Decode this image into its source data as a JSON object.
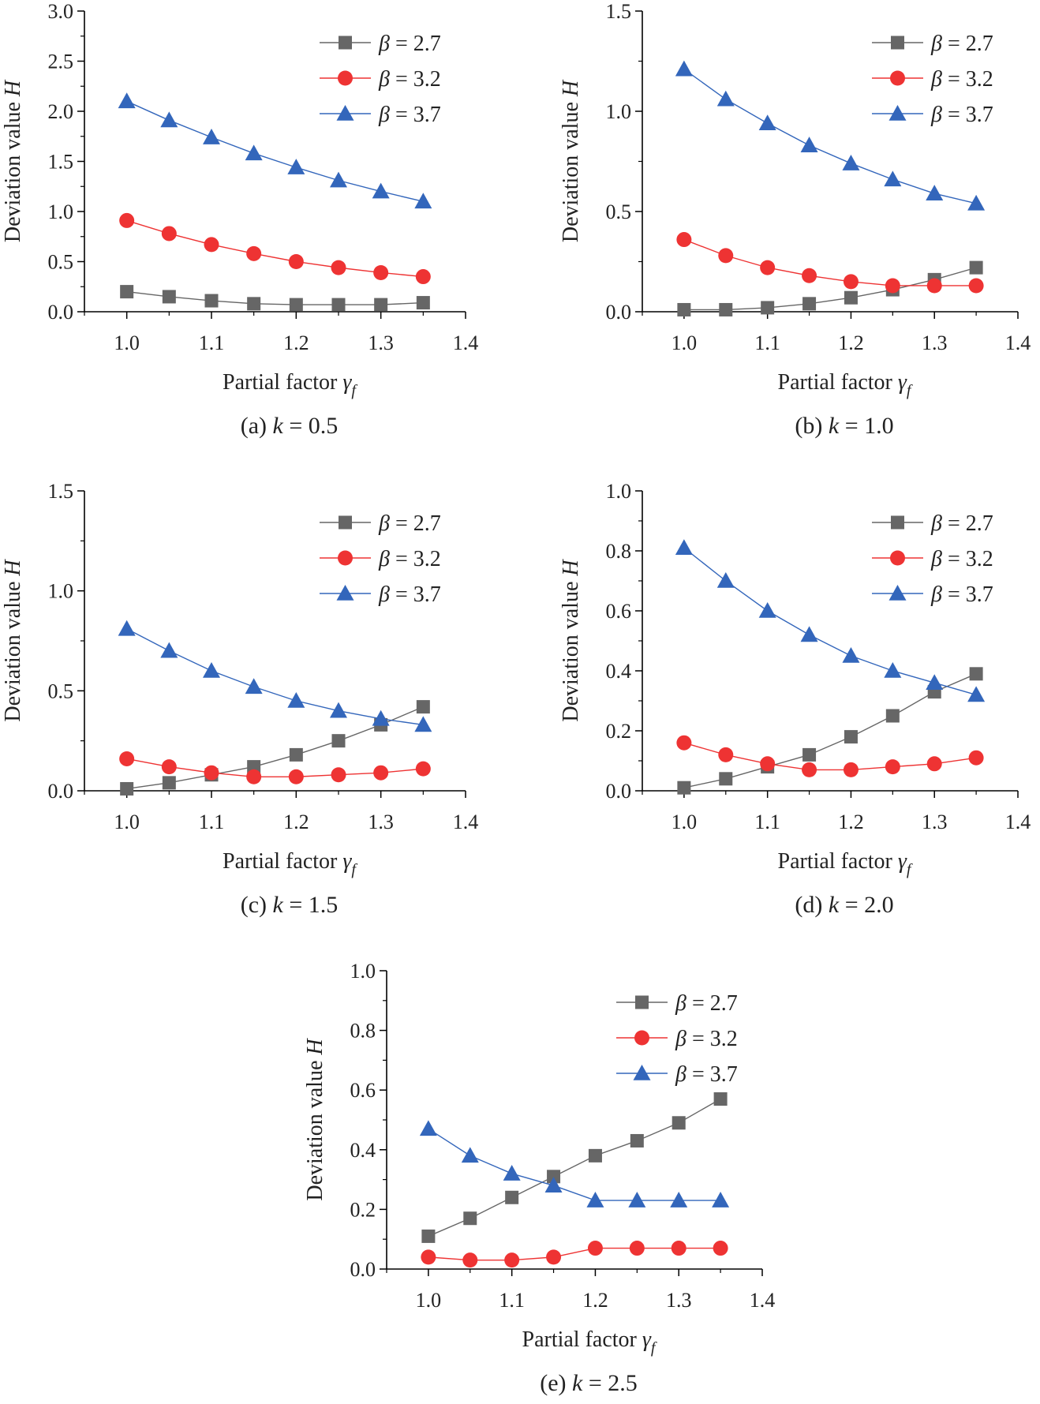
{
  "figure": {
    "series_styles": [
      {
        "name": "β = 2.7",
        "color": "#666666",
        "marker": "square"
      },
      {
        "name": "β = 3.2",
        "color": "#ee3333",
        "marker": "circle"
      },
      {
        "name": "β = 3.7",
        "color": "#3366bb",
        "marker": "triangle"
      }
    ],
    "legend_symbol": "β",
    "legend_values": [
      "2.7",
      "3.2",
      "3.7"
    ],
    "ylabel": "Deviation value H",
    "xlabel": "Partial factor γf"
  },
  "chart_data": [
    {
      "type": "line",
      "caption_prefix": "(a) ",
      "caption_var": "k",
      "caption_value": " = 0.5",
      "xlabel": "Partial factor γf",
      "ylabel": "Deviation value H",
      "xlim": [
        0.95,
        1.4
      ],
      "ylim": [
        0,
        3.0
      ],
      "xticks": [
        "1.0",
        "1.1",
        "1.2",
        "1.3",
        "1.4"
      ],
      "yticks": [
        "0.0",
        "0.5",
        "1.0",
        "1.5",
        "2.0",
        "2.5",
        "3.0"
      ],
      "x": [
        1.0,
        1.05,
        1.1,
        1.15,
        1.2,
        1.25,
        1.3,
        1.35
      ],
      "legend": "top-right",
      "series": [
        {
          "name": "β = 2.7",
          "values": [
            0.2,
            0.15,
            0.11,
            0.08,
            0.07,
            0.07,
            0.07,
            0.09
          ]
        },
        {
          "name": "β = 3.2",
          "values": [
            0.91,
            0.78,
            0.67,
            0.58,
            0.5,
            0.44,
            0.39,
            0.35
          ]
        },
        {
          "name": "β = 3.7",
          "values": [
            2.1,
            1.91,
            1.74,
            1.58,
            1.44,
            1.31,
            1.2,
            1.1
          ]
        }
      ]
    },
    {
      "type": "line",
      "caption_prefix": "(b) ",
      "caption_var": "k",
      "caption_value": " = 1.0",
      "xlabel": "Partial factor γf",
      "ylabel": "Deviation value H",
      "xlim": [
        0.95,
        1.4
      ],
      "ylim": [
        0,
        1.5
      ],
      "xticks": [
        "1.0",
        "1.1",
        "1.2",
        "1.3",
        "1.4"
      ],
      "yticks": [
        "0.0",
        "0.5",
        "1.0",
        "1.5"
      ],
      "x": [
        1.0,
        1.05,
        1.1,
        1.15,
        1.2,
        1.25,
        1.3,
        1.35
      ],
      "legend": "top-right",
      "series": [
        {
          "name": "β = 2.7",
          "values": [
            0.01,
            0.01,
            0.02,
            0.04,
            0.07,
            0.11,
            0.16,
            0.22
          ]
        },
        {
          "name": "β = 3.2",
          "values": [
            0.36,
            0.28,
            0.22,
            0.18,
            0.15,
            0.13,
            0.13,
            0.13
          ]
        },
        {
          "name": "β = 3.7",
          "values": [
            1.21,
            1.06,
            0.94,
            0.83,
            0.74,
            0.66,
            0.59,
            0.54
          ]
        }
      ]
    },
    {
      "type": "line",
      "caption_prefix": "(c) ",
      "caption_var": "k",
      "caption_value": " = 1.5",
      "xlabel": "Partial factor γf",
      "ylabel": "Deviation value H",
      "xlim": [
        0.95,
        1.4
      ],
      "ylim": [
        0,
        1.5
      ],
      "xticks": [
        "1.0",
        "1.1",
        "1.2",
        "1.3",
        "1.4"
      ],
      "yticks": [
        "0.0",
        "0.5",
        "1.0",
        "1.5"
      ],
      "x": [
        1.0,
        1.05,
        1.1,
        1.15,
        1.2,
        1.25,
        1.3,
        1.35
      ],
      "legend": "top-right",
      "series": [
        {
          "name": "β = 2.7",
          "values": [
            0.01,
            0.04,
            0.08,
            0.12,
            0.18,
            0.25,
            0.33,
            0.42
          ]
        },
        {
          "name": "β = 3.2",
          "values": [
            0.16,
            0.12,
            0.09,
            0.07,
            0.07,
            0.08,
            0.09,
            0.11
          ]
        },
        {
          "name": "β = 3.7",
          "values": [
            0.81,
            0.7,
            0.6,
            0.52,
            0.45,
            0.4,
            0.36,
            0.33
          ]
        }
      ]
    },
    {
      "type": "line",
      "caption_prefix": "(d) ",
      "caption_var": "k",
      "caption_value": " = 2.0",
      "xlabel": "Partial factor γf",
      "ylabel": "Deviation value H",
      "xlim": [
        0.95,
        1.4
      ],
      "ylim": [
        0,
        1.0
      ],
      "xticks": [
        "1.0",
        "1.1",
        "1.2",
        "1.3",
        "1.4"
      ],
      "yticks": [
        "0.0",
        "0.2",
        "0.4",
        "0.6",
        "0.8",
        "1.0"
      ],
      "x": [
        1.0,
        1.05,
        1.1,
        1.15,
        1.2,
        1.25,
        1.3,
        1.35
      ],
      "legend": "top-right",
      "series": [
        {
          "name": "β = 2.7",
          "values": [
            0.01,
            0.04,
            0.08,
            0.12,
            0.18,
            0.25,
            0.33,
            0.39
          ]
        },
        {
          "name": "β = 3.2",
          "values": [
            0.16,
            0.12,
            0.09,
            0.07,
            0.07,
            0.08,
            0.09,
            0.11
          ]
        },
        {
          "name": "β = 3.7",
          "values": [
            0.81,
            0.7,
            0.6,
            0.52,
            0.45,
            0.4,
            0.36,
            0.32
          ]
        }
      ]
    },
    {
      "type": "line",
      "caption_prefix": "(e) ",
      "caption_var": "k",
      "caption_value": " = 2.5",
      "xlabel": "Partial factor γf",
      "ylabel": "Deviation value H",
      "xlim": [
        0.95,
        1.4
      ],
      "ylim": [
        0,
        1.0
      ],
      "xticks": [
        "1.0",
        "1.1",
        "1.2",
        "1.3",
        "1.4"
      ],
      "yticks": [
        "0.0",
        "0.2",
        "0.4",
        "0.6",
        "0.8",
        "1.0"
      ],
      "x": [
        1.0,
        1.05,
        1.1,
        1.15,
        1.2,
        1.25,
        1.3,
        1.35
      ],
      "legend": "top-right",
      "series": [
        {
          "name": "β = 2.7",
          "values": [
            0.11,
            0.17,
            0.24,
            0.31,
            0.38,
            0.43,
            0.49,
            0.57
          ]
        },
        {
          "name": "β = 3.2",
          "values": [
            0.04,
            0.03,
            0.03,
            0.04,
            0.07,
            0.07,
            0.07,
            0.07
          ]
        },
        {
          "name": "β = 3.7",
          "values": [
            0.47,
            0.38,
            0.32,
            0.28,
            0.23,
            0.23,
            0.23,
            0.23
          ]
        }
      ]
    }
  ]
}
